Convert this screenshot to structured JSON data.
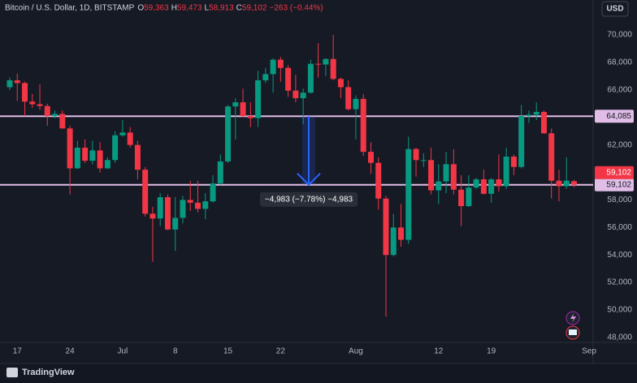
{
  "chart_data": {
    "type": "candlestick",
    "title": "Bitcoin / U.S. Dollar, 1D, BITSTAMP",
    "ohlc_legend": [
      {
        "key": "O",
        "value": "59,363"
      },
      {
        "key": "H",
        "value": "59,473"
      },
      {
        "key": "L",
        "value": "58,913"
      },
      {
        "key": "C",
        "value": "59,102"
      }
    ],
    "change": "−263 (−0.44%)",
    "currency_button": "USD",
    "brand": "TradingView",
    "categories": [
      null,
      "17",
      null,
      null,
      null,
      null,
      null,
      null,
      "24",
      null,
      null,
      null,
      null,
      null,
      null,
      "Jul",
      null,
      null,
      null,
      null,
      null,
      null,
      "8",
      null,
      null,
      null,
      null,
      null,
      null,
      "15",
      null,
      null,
      null,
      null,
      null,
      null,
      "22",
      null,
      null,
      null,
      null,
      null,
      null,
      null,
      null,
      null,
      "Aug",
      null,
      null,
      null,
      null,
      null,
      null,
      null,
      null,
      null,
      null,
      "12",
      null,
      null,
      null,
      null,
      null,
      null,
      "19",
      null,
      null,
      null,
      null,
      null,
      null,
      null,
      null,
      null,
      null,
      null,
      null,
      "Sep"
    ],
    "open": [
      66200,
      66700,
      66500,
      65150,
      64960,
      64830,
      64100,
      64260,
      63200,
      60300,
      61800,
      60850,
      61600,
      60300,
      60900,
      62700,
      62900,
      62000,
      60200,
      57000,
      56650,
      58200,
      55850,
      56700,
      58000,
      57800,
      57350,
      57900,
      59200,
      60800,
      64800,
      65100,
      64100,
      63950,
      66700,
      67150,
      68200,
      67600,
      65950,
      65400,
      65800,
      67900,
      67850,
      68250,
      66800,
      66200,
      64600,
      65350,
      61500,
      60700,
      58100,
      54000,
      56000,
      55100,
      61700,
      60850,
      60900,
      58700,
      59350,
      60600,
      58750,
      57550,
      58900,
      59500,
      58450,
      59500,
      59000,
      61150,
      60400,
      64100,
      64200,
      64400,
      62850,
      59400,
      59000,
      59363,
      null,
      null
    ],
    "high": [
      66900,
      67200,
      66600,
      65700,
      66400,
      65000,
      64500,
      64500,
      63400,
      62300,
      62400,
      62300,
      62200,
      61100,
      63000,
      63800,
      63300,
      62300,
      60400,
      57500,
      58500,
      58400,
      58200,
      58300,
      59400,
      59400,
      58500,
      59800,
      61300,
      64900,
      65400,
      66100,
      65100,
      67400,
      67600,
      68300,
      68400,
      67800,
      67100,
      66100,
      68200,
      69400,
      68300,
      70000,
      66900,
      66700,
      65600,
      65700,
      62200,
      61100,
      58300,
      57000,
      57700,
      62600,
      61800,
      61400,
      61800,
      60600,
      61500,
      61700,
      59800,
      59800,
      59600,
      60200,
      59600,
      61300,
      61800,
      61300,
      64900,
      64500,
      65100,
      64500,
      63200,
      60200,
      61100,
      59473,
      null,
      null
    ],
    "low": [
      66000,
      65200,
      64100,
      64700,
      64550,
      63400,
      63950,
      63200,
      58400,
      60250,
      60700,
      60600,
      60000,
      60250,
      60700,
      62600,
      61800,
      59500,
      56800,
      53500,
      56100,
      55800,
      54300,
      56300,
      57200,
      57100,
      56600,
      57800,
      59100,
      60700,
      62400,
      64000,
      63300,
      63300,
      66500,
      65800,
      66600,
      65500,
      65100,
      63500,
      65750,
      66900,
      67000,
      66700,
      65400,
      64500,
      62400,
      61200,
      59900,
      57300,
      49500,
      53900,
      54600,
      54800,
      59700,
      60400,
      58400,
      57700,
      58500,
      58400,
      56100,
      57500,
      58800,
      58400,
      57800,
      58600,
      58800,
      59800,
      60300,
      63600,
      63800,
      62800,
      58100,
      57900,
      58800,
      58913,
      null,
      null
    ],
    "close": [
      66700,
      66500,
      65150,
      64960,
      64830,
      64100,
      64260,
      63200,
      60300,
      61800,
      60850,
      61600,
      60300,
      60900,
      62700,
      62900,
      62000,
      60200,
      57000,
      56650,
      58200,
      55850,
      56700,
      58000,
      57800,
      57350,
      57900,
      59200,
      60800,
      64800,
      65100,
      64100,
      63950,
      66700,
      67150,
      68200,
      67600,
      65950,
      65400,
      65800,
      67900,
      67850,
      68250,
      66800,
      66200,
      64600,
      65350,
      61500,
      60700,
      58100,
      54000,
      56000,
      55100,
      61700,
      60900,
      60900,
      58700,
      59350,
      60600,
      58750,
      57550,
      58900,
      59500,
      58450,
      59500,
      59000,
      61150,
      60400,
      64100,
      64200,
      64400,
      62850,
      59400,
      59000,
      59400,
      59102,
      null,
      null
    ],
    "up_color": "#089981",
    "down_color": "#f23645",
    "ylim": [
      47640,
      72540
    ],
    "yticks": [
      {
        "value": 48000,
        "label": "48,000"
      },
      {
        "value": 50000,
        "label": "50,000"
      },
      {
        "value": 52000,
        "label": "52,000"
      },
      {
        "value": 54000,
        "label": "54,000"
      },
      {
        "value": 56000,
        "label": "56,000"
      },
      {
        "value": 58000,
        "label": "58,000"
      },
      {
        "value": 60000,
        "label": "60,000"
      },
      {
        "value": 62000,
        "label": "62,000"
      },
      {
        "value": 64000,
        "label": "64,000"
      },
      {
        "value": 66000,
        "label": "66,000"
      },
      {
        "value": 68000,
        "label": "68,000"
      },
      {
        "value": 70000,
        "label": "70,000"
      }
    ],
    "hlines": [
      {
        "value": 64085,
        "label": "64,085"
      },
      {
        "value": 59102,
        "label": "59,102"
      }
    ],
    "hline_color": "#e1bee7",
    "last_price": {
      "value": 59102,
      "label": "59,102"
    },
    "measure": {
      "from": 64085,
      "to": 59102,
      "label": "−4,983 (−7.78%) −4,983",
      "color": "#2962ff"
    }
  }
}
